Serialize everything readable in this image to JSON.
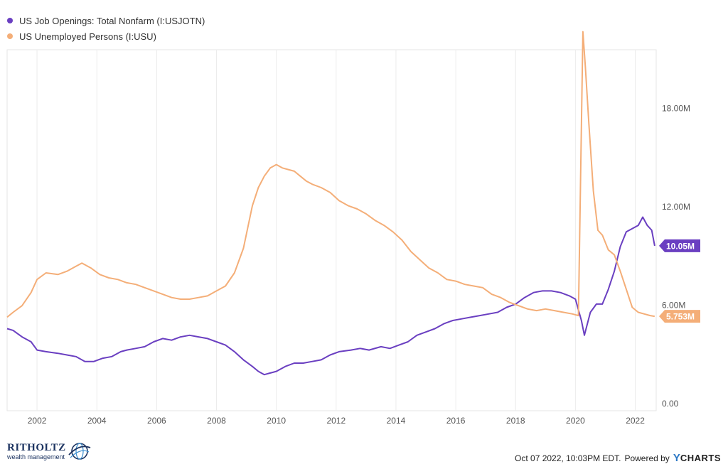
{
  "legend": [
    {
      "label": "US Job Openings: Total Nonfarm (I:USJOTN)",
      "color": "#6a3fc1"
    },
    {
      "label": "US Unemployed Persons (I:USU)",
      "color": "#f4ae78"
    }
  ],
  "footer": {
    "brand_name": "RITHOLTZ",
    "brand_sub": "wealth management",
    "timestamp": "Oct 07 2022, 10:03PM EDT.",
    "powered_by": "Powered by",
    "ycharts_y": "Y",
    "ycharts_rest": "CHARTS"
  },
  "chart_data": {
    "type": "line",
    "title": "",
    "xlabel": "",
    "ylabel": "",
    "xlim": [
      2001.0,
      2022.7
    ],
    "ylim": [
      0,
      22.0
    ],
    "x_ticks": [
      2002,
      2004,
      2006,
      2008,
      2010,
      2012,
      2014,
      2016,
      2018,
      2020,
      2022
    ],
    "y_ticks": [
      {
        "value": 0,
        "label": "0.00"
      },
      {
        "value": 6,
        "label": "6.00M"
      },
      {
        "value": 12,
        "label": "12.00M"
      },
      {
        "value": 18,
        "label": "18.00M"
      }
    ],
    "grid": "vertical",
    "legend_position": "top-left",
    "series": [
      {
        "name": "US Job Openings: Total Nonfarm (I:USJOTN)",
        "color": "#6a3fc1",
        "last_value_label": "10.05M",
        "x": [
          2001.0,
          2001.2,
          2001.5,
          2001.8,
          2002.0,
          2002.3,
          2002.7,
          2003.0,
          2003.3,
          2003.6,
          2003.9,
          2004.2,
          2004.5,
          2004.8,
          2005.0,
          2005.3,
          2005.6,
          2005.9,
          2006.2,
          2006.5,
          2006.8,
          2007.1,
          2007.4,
          2007.7,
          2008.0,
          2008.3,
          2008.6,
          2008.9,
          2009.2,
          2009.4,
          2009.6,
          2009.8,
          2010.0,
          2010.3,
          2010.6,
          2010.9,
          2011.2,
          2011.5,
          2011.8,
          2012.1,
          2012.5,
          2012.8,
          2013.1,
          2013.5,
          2013.8,
          2014.1,
          2014.4,
          2014.7,
          2015.0,
          2015.3,
          2015.6,
          2015.9,
          2016.2,
          2016.5,
          2016.8,
          2017.1,
          2017.4,
          2017.7,
          2018.0,
          2018.3,
          2018.6,
          2018.9,
          2019.2,
          2019.5,
          2019.8,
          2020.0,
          2020.2,
          2020.3,
          2020.5,
          2020.7,
          2020.9,
          2021.1,
          2021.3,
          2021.5,
          2021.7,
          2021.9,
          2022.1,
          2022.25,
          2022.4,
          2022.55,
          2022.65
        ],
        "values": [
          5.0,
          4.9,
          4.5,
          4.2,
          3.7,
          3.6,
          3.5,
          3.4,
          3.3,
          3.0,
          3.0,
          3.2,
          3.3,
          3.6,
          3.7,
          3.8,
          3.9,
          4.2,
          4.4,
          4.3,
          4.5,
          4.6,
          4.5,
          4.4,
          4.2,
          4.0,
          3.6,
          3.1,
          2.7,
          2.4,
          2.2,
          2.3,
          2.4,
          2.7,
          2.9,
          2.9,
          3.0,
          3.1,
          3.4,
          3.6,
          3.7,
          3.8,
          3.7,
          3.9,
          3.8,
          4.0,
          4.2,
          4.6,
          4.8,
          5.0,
          5.3,
          5.5,
          5.6,
          5.7,
          5.8,
          5.9,
          6.0,
          6.3,
          6.5,
          6.9,
          7.2,
          7.3,
          7.3,
          7.2,
          7.0,
          6.8,
          5.5,
          4.6,
          6.0,
          6.5,
          6.5,
          7.4,
          8.5,
          10.0,
          10.9,
          11.1,
          11.3,
          11.8,
          11.3,
          11.0,
          10.05
        ]
      },
      {
        "name": "US Unemployed Persons (I:USU)",
        "color": "#f4ae78",
        "last_value_label": "5.753M",
        "x": [
          2001.0,
          2001.2,
          2001.5,
          2001.8,
          2002.0,
          2002.3,
          2002.7,
          2003.0,
          2003.3,
          2003.5,
          2003.8,
          2004.1,
          2004.4,
          2004.7,
          2005.0,
          2005.3,
          2005.6,
          2005.9,
          2006.2,
          2006.5,
          2006.8,
          2007.1,
          2007.4,
          2007.7,
          2008.0,
          2008.3,
          2008.6,
          2008.9,
          2009.2,
          2009.4,
          2009.6,
          2009.8,
          2010.0,
          2010.2,
          2010.4,
          2010.6,
          2010.8,
          2011.0,
          2011.2,
          2011.5,
          2011.8,
          2012.1,
          2012.4,
          2012.7,
          2013.0,
          2013.3,
          2013.6,
          2013.9,
          2014.2,
          2014.5,
          2014.8,
          2015.1,
          2015.4,
          2015.7,
          2016.0,
          2016.3,
          2016.6,
          2016.9,
          2017.2,
          2017.5,
          2017.8,
          2018.1,
          2018.4,
          2018.7,
          2019.0,
          2019.3,
          2019.6,
          2019.9,
          2020.1,
          2020.25,
          2020.33,
          2020.45,
          2020.6,
          2020.75,
          2020.9,
          2021.1,
          2021.3,
          2021.5,
          2021.7,
          2021.9,
          2022.1,
          2022.3,
          2022.5,
          2022.65
        ],
        "values": [
          5.7,
          6.0,
          6.4,
          7.2,
          8.0,
          8.4,
          8.3,
          8.5,
          8.8,
          9.0,
          8.7,
          8.3,
          8.1,
          8.0,
          7.8,
          7.7,
          7.5,
          7.3,
          7.1,
          6.9,
          6.8,
          6.8,
          6.9,
          7.0,
          7.3,
          7.6,
          8.4,
          9.9,
          12.5,
          13.6,
          14.3,
          14.8,
          15.0,
          14.8,
          14.7,
          14.6,
          14.3,
          14.0,
          13.8,
          13.6,
          13.3,
          12.8,
          12.5,
          12.3,
          12.0,
          11.6,
          11.3,
          10.9,
          10.4,
          9.7,
          9.2,
          8.7,
          8.4,
          8.0,
          7.9,
          7.7,
          7.6,
          7.5,
          7.1,
          6.9,
          6.6,
          6.4,
          6.2,
          6.1,
          6.2,
          6.1,
          6.0,
          5.9,
          5.8,
          23.1,
          21.0,
          17.5,
          13.4,
          11.0,
          10.7,
          9.8,
          9.5,
          8.5,
          7.4,
          6.3,
          6.0,
          5.9,
          5.8,
          5.753
        ]
      }
    ]
  }
}
